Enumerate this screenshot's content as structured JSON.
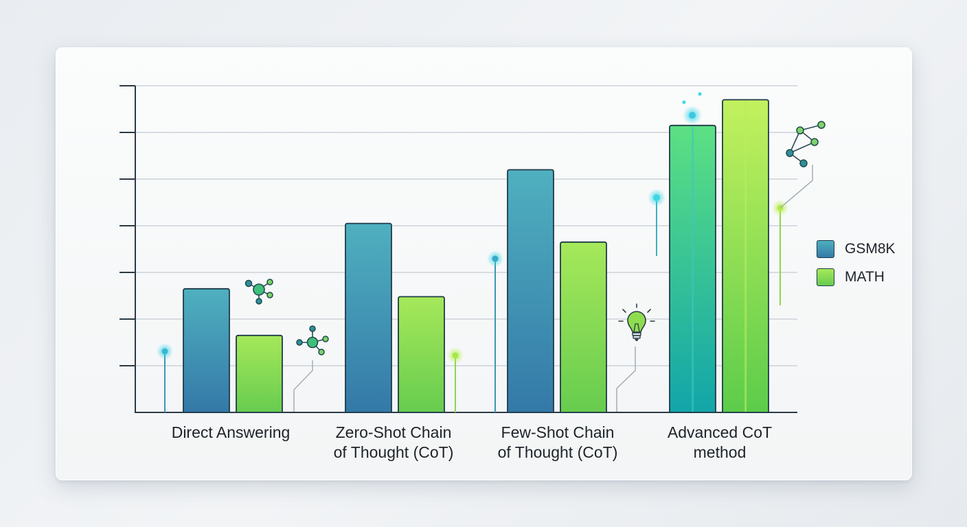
{
  "chart_data": {
    "type": "bar",
    "categories": [
      "Direct Answering",
      "Zero-Shot Chain of Thought (CoT)",
      "Few-Shot Chain of Thought (CoT)",
      "Advanced CoT method"
    ],
    "category_lines": [
      [
        "Direct Answering"
      ],
      [
        "Zero-Shot Chain",
        "of Thought (CoT)"
      ],
      [
        "Few-Shot Chain",
        "of Thought (CoT)"
      ],
      [
        "Advanced CoT",
        "method"
      ]
    ],
    "series": [
      {
        "name": "GSM8K",
        "values": [
          2.65,
          4.05,
          5.2,
          6.15
        ],
        "color": "#3a8fb0"
      },
      {
        "name": "MATH",
        "values": [
          1.65,
          2.48,
          3.65,
          6.7
        ],
        "color": "#8fdc4f"
      }
    ],
    "ylim": [
      0,
      7
    ],
    "grid": true,
    "legend": "right",
    "title": "",
    "xlabel": "",
    "ylabel": ""
  }
}
